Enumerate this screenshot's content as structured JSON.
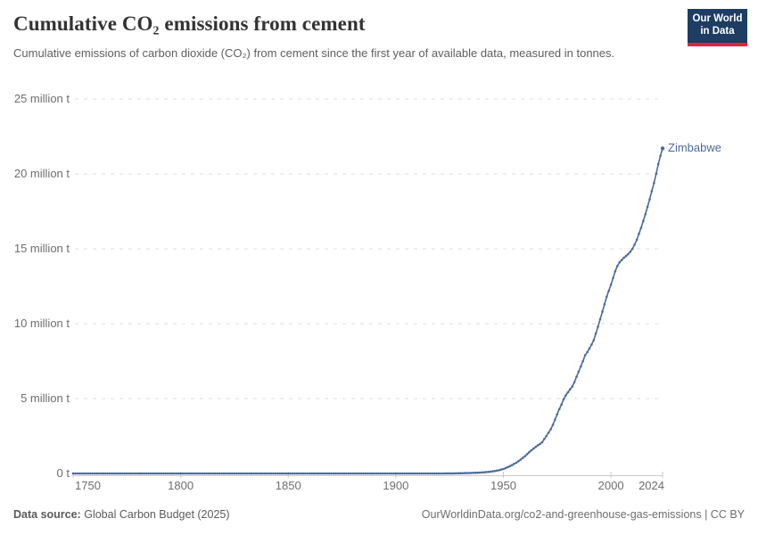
{
  "header": {
    "title": "Cumulative CO₂ emissions from cement",
    "subtitle": "Cumulative emissions of carbon dioxide (CO₂) from cement since the first year of available data, measured in tonnes."
  },
  "logo": {
    "line1": "Our World",
    "line2": "in Data",
    "bg_color": "#1d3d63",
    "stripe_color": "#e0243a"
  },
  "chart_data": {
    "type": "line",
    "title": "Cumulative CO₂ emissions from cement",
    "xlabel": "",
    "ylabel": "",
    "unit": "tonnes",
    "values_unit_of_points": "million tonnes",
    "grid": "horizontal-dashed",
    "legend_position": "end-of-line-label",
    "x_axis": {
      "range": [
        1750,
        2024
      ],
      "ticks": [
        1750,
        1800,
        1850,
        1900,
        1950,
        2000,
        2024
      ]
    },
    "y_axis": {
      "range_million_tonnes": [
        0,
        25
      ],
      "ticks": [
        {
          "value": 0,
          "label": "0 t"
        },
        {
          "value": 5,
          "label": "5 million t"
        },
        {
          "value": 10,
          "label": "10 million t"
        },
        {
          "value": 15,
          "label": "15 million t"
        },
        {
          "value": 20,
          "label": "20 million t"
        },
        {
          "value": 25,
          "label": "25 million t"
        }
      ]
    },
    "series": [
      {
        "name": "Zimbabwe",
        "color": "#4c6a9c",
        "points": [
          [
            1750,
            0
          ],
          [
            1920,
            0
          ],
          [
            1928,
            0.01
          ],
          [
            1934,
            0.03
          ],
          [
            1938,
            0.05
          ],
          [
            1941,
            0.08
          ],
          [
            1944,
            0.12
          ],
          [
            1946,
            0.16
          ],
          [
            1948,
            0.22
          ],
          [
            1950,
            0.3
          ],
          [
            1952,
            0.42
          ],
          [
            1954,
            0.56
          ],
          [
            1956,
            0.72
          ],
          [
            1958,
            0.92
          ],
          [
            1960,
            1.15
          ],
          [
            1962,
            1.42
          ],
          [
            1964,
            1.66
          ],
          [
            1966,
            1.88
          ],
          [
            1967,
            1.97
          ],
          [
            1968,
            2.08
          ],
          [
            1969,
            2.3
          ],
          [
            1970,
            2.5
          ],
          [
            1971,
            2.72
          ],
          [
            1972,
            2.95
          ],
          [
            1973,
            3.25
          ],
          [
            1974,
            3.6
          ],
          [
            1975,
            3.95
          ],
          [
            1976,
            4.3
          ],
          [
            1977,
            4.6
          ],
          [
            1978,
            4.95
          ],
          [
            1979,
            5.2
          ],
          [
            1980,
            5.42
          ],
          [
            1981,
            5.62
          ],
          [
            1982,
            5.8
          ],
          [
            1983,
            6.1
          ],
          [
            1984,
            6.45
          ],
          [
            1985,
            6.8
          ],
          [
            1986,
            7.15
          ],
          [
            1987,
            7.5
          ],
          [
            1988,
            7.9
          ],
          [
            1989,
            8.1
          ],
          [
            1990,
            8.35
          ],
          [
            1991,
            8.6
          ],
          [
            1992,
            8.9
          ],
          [
            1993,
            9.35
          ],
          [
            1994,
            9.8
          ],
          [
            1995,
            10.3
          ],
          [
            1996,
            10.8
          ],
          [
            1997,
            11.3
          ],
          [
            1998,
            11.8
          ],
          [
            1999,
            12.2
          ],
          [
            2000,
            12.6
          ],
          [
            2001,
            13.05
          ],
          [
            2002,
            13.5
          ],
          [
            2003,
            13.85
          ],
          [
            2004,
            14.1
          ],
          [
            2005,
            14.25
          ],
          [
            2006,
            14.4
          ],
          [
            2007,
            14.52
          ],
          [
            2008,
            14.65
          ],
          [
            2009,
            14.8
          ],
          [
            2010,
            15.0
          ],
          [
            2011,
            15.28
          ],
          [
            2012,
            15.6
          ],
          [
            2013,
            16.0
          ],
          [
            2014,
            16.4
          ],
          [
            2015,
            16.85
          ],
          [
            2016,
            17.3
          ],
          [
            2017,
            17.8
          ],
          [
            2018,
            18.3
          ],
          [
            2019,
            18.85
          ],
          [
            2020,
            19.4
          ],
          [
            2021,
            20.0
          ],
          [
            2022,
            20.65
          ],
          [
            2023,
            21.2
          ],
          [
            2024,
            21.7
          ]
        ]
      }
    ],
    "colors": {
      "gridline": "#dcdcdc",
      "axis_line": "#c8c8c8",
      "tick_label": "#6e6e6e"
    }
  },
  "footer": {
    "source_label": "Data source:",
    "source_text": "Global Carbon Budget (2025)",
    "credit": "OurWorldinData.org/co2-and-greenhouse-gas-emissions | CC BY"
  }
}
